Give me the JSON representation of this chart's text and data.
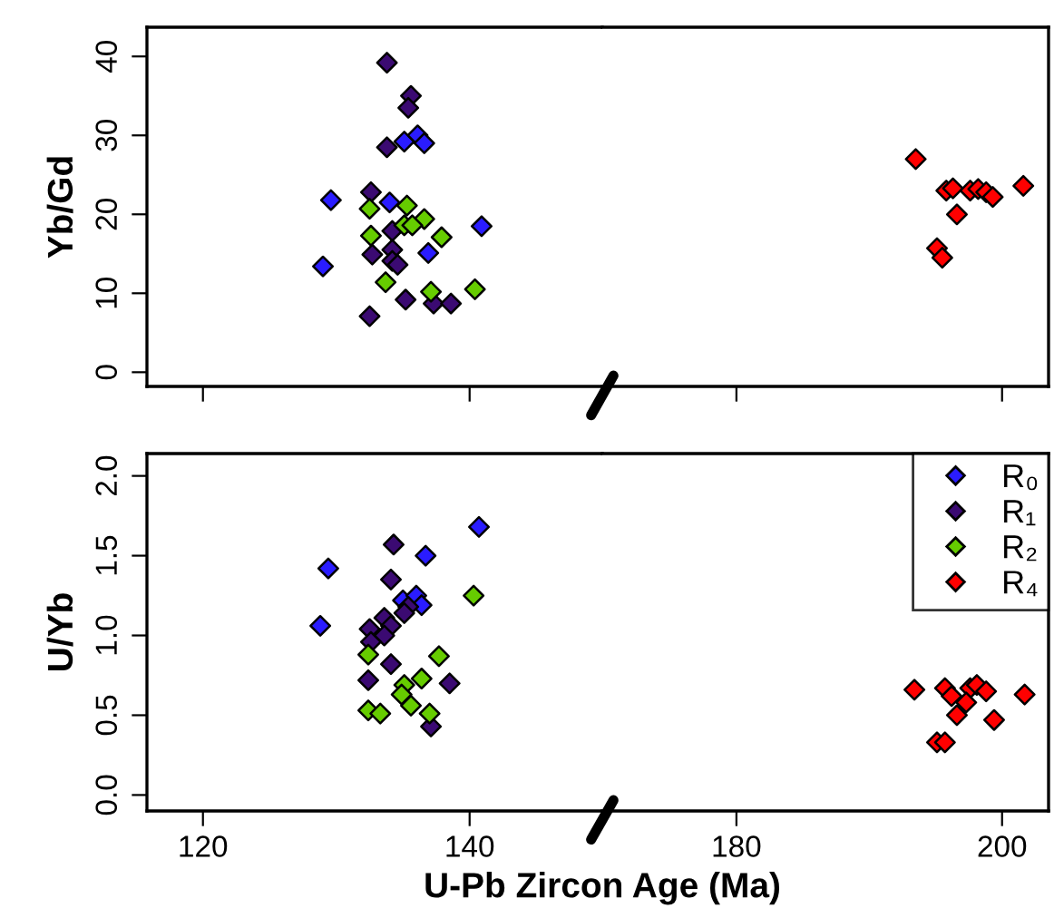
{
  "chart_data": [
    {
      "type": "scatter",
      "ylabel": "Yb/Gd",
      "xlim": [
        115.8,
        149.95
      ],
      "xticks": [
        120,
        140
      ],
      "ylim": [
        -1.8,
        43.7
      ],
      "yticks": [
        0,
        10,
        20,
        30,
        40
      ],
      "tick_labels": "y",
      "marker": "diamond",
      "grid": false,
      "series": [
        {
          "color": "#2a1cff",
          "x": [
            129.6,
            135.1,
            136.1,
            136.6,
            134.0,
            140.9,
            136.9,
            129.0
          ],
          "values": [
            21.8,
            29.2,
            30.0,
            29.0,
            21.5,
            18.5,
            15.1,
            13.4
          ]
        },
        {
          "color": "#3b0a72",
          "x": [
            133.8,
            135.6,
            135.4,
            133.8,
            132.6,
            134.2,
            132.7,
            134.2,
            134.2,
            134.6,
            135.2,
            137.3,
            138.6,
            132.5
          ],
          "values": [
            39.2,
            35.0,
            33.5,
            28.5,
            22.8,
            17.9,
            14.9,
            15.5,
            14.1,
            13.6,
            9.2,
            8.7,
            8.7,
            7.1
          ]
        },
        {
          "color": "#66cc00",
          "x": [
            135.3,
            132.5,
            136.6,
            135.1,
            135.7,
            132.6,
            137.9,
            133.7,
            137.1,
            140.4
          ],
          "values": [
            21.1,
            20.7,
            19.4,
            18.6,
            18.6,
            17.3,
            17.1,
            11.4,
            10.2,
            10.5
          ]
        }
      ]
    },
    {
      "type": "scatter",
      "xlim": [
        169.9,
        203.5
      ],
      "xticks": [
        180,
        200
      ],
      "ylim": [
        -1.8,
        43.7
      ],
      "tick_labels": false,
      "marker": "diamond",
      "grid": false,
      "series": [
        {
          "color": "#ff0000",
          "x": [
            193.5,
            195.1,
            195.5,
            195.8,
            196.3,
            196.6,
            197.6,
            198.2,
            198.8,
            199.3,
            201.6
          ],
          "values": [
            27,
            15.7,
            14.5,
            23,
            23.3,
            20,
            23,
            23.2,
            22.8,
            22.2,
            23.6
          ]
        }
      ]
    },
    {
      "type": "scatter",
      "xlabel": "U-Pb Zircon Age (Ma)",
      "ylabel": "U/Yb",
      "xlim": [
        115.8,
        149.95
      ],
      "xticks": [
        120,
        140
      ],
      "ylim": [
        -0.1,
        2.14
      ],
      "yticks": [
        {
          "value": 0,
          "label": "0.0"
        },
        0.5,
        {
          "value": 1,
          "label": "1.0"
        },
        1.5,
        {
          "value": 2,
          "label": "2.0"
        }
      ],
      "marker": "diamond",
      "grid": false,
      "series": [
        {
          "color": "#2a1cff",
          "x": [
            140.7,
            129.4,
            136.7,
            135.0,
            136.0,
            136.4,
            128.8
          ],
          "values": [
            1.68,
            1.42,
            1.5,
            1.22,
            1.25,
            1.19,
            1.06
          ]
        },
        {
          "color": "#3b0a72",
          "x": [
            134.3,
            134.1,
            135.4,
            135.1,
            133.6,
            134.1,
            132.5,
            133.6,
            132.6,
            134.1,
            132.4,
            138.5,
            137.1
          ],
          "values": [
            1.57,
            1.35,
            1.18,
            1.14,
            1.11,
            1.06,
            1.04,
            1.0,
            0.96,
            0.82,
            0.72,
            0.7,
            0.43
          ]
        },
        {
          "color": "#66cc00",
          "x": [
            140.3,
            132.4,
            137.7,
            136.4,
            135.1,
            134.9,
            135.6,
            132.4,
            133.3,
            137.0
          ],
          "values": [
            1.25,
            0.88,
            0.87,
            0.73,
            0.69,
            0.63,
            0.56,
            0.53,
            0.51,
            0.51
          ]
        }
      ]
    },
    {
      "type": "scatter",
      "xlim": [
        169.9,
        203.5
      ],
      "xticks": [
        180,
        200
      ],
      "ylim": [
        -0.1,
        2.14
      ],
      "tick_labels": "x",
      "marker": "diamond",
      "legend": "top right",
      "grid": false,
      "series": [
        {
          "name": "R₀",
          "color": "#2a1cff"
        },
        {
          "name": "R₁",
          "color": "#3b0a72"
        },
        {
          "name": "R₂",
          "color": "#66cc00"
        },
        {
          "name": "R₄",
          "color": "#ff0000",
          "x": [
            193.4,
            195.7,
            196.2,
            197.6,
            198.1,
            198.8,
            197.3,
            196.6,
            199.4,
            201.7,
            195.1,
            195.7
          ],
          "values": [
            0.66,
            0.67,
            0.62,
            0.67,
            0.69,
            0.65,
            0.58,
            0.5,
            0.47,
            0.63,
            0.33,
            0.33
          ]
        }
      ]
    }
  ]
}
